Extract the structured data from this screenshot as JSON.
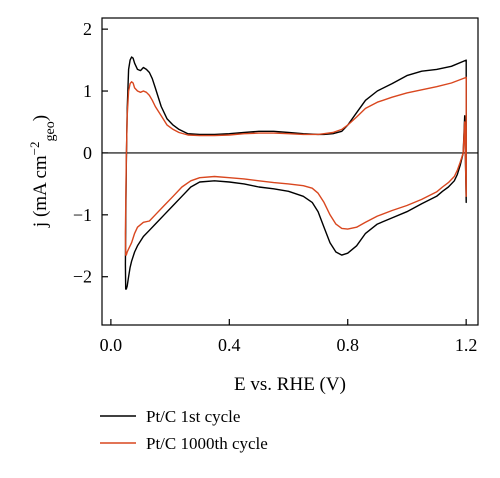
{
  "chart_data": {
    "type": "line",
    "xlabel": "E vs. RHE (V)",
    "ylabel": {
      "prefix": "j (mA cm",
      "sup": "−2",
      "sub": "geo",
      "suffix": ")"
    },
    "xlim": [
      -0.03,
      1.24
    ],
    "ylim": [
      -2.78,
      2.18
    ],
    "x_ticks": [
      0.0,
      0.4,
      0.8,
      1.2
    ],
    "x_tick_labels": [
      "0.0",
      "0.4",
      "0.8",
      "1.2"
    ],
    "y_ticks": [
      2,
      1,
      0,
      -1,
      -2
    ],
    "y_tick_labels": [
      "2",
      "1",
      "0",
      "−1",
      "−2"
    ],
    "zero_line": 0,
    "grid": false,
    "legend_position": "bottom-left, below plot",
    "series": [
      {
        "name": "Pt/C 1st cycle",
        "color": "#000000",
        "x": [
          0.05,
          0.052,
          0.055,
          0.06,
          0.065,
          0.07,
          0.075,
          0.08,
          0.09,
          0.1,
          0.11,
          0.12,
          0.13,
          0.14,
          0.15,
          0.17,
          0.19,
          0.21,
          0.23,
          0.26,
          0.3,
          0.35,
          0.4,
          0.45,
          0.5,
          0.55,
          0.6,
          0.65,
          0.7,
          0.72,
          0.75,
          0.78,
          0.8,
          0.83,
          0.86,
          0.9,
          0.95,
          1.0,
          1.05,
          1.1,
          1.15,
          1.2,
          1.2,
          1.195,
          1.19,
          1.18,
          1.17,
          1.16,
          1.14,
          1.12,
          1.1,
          1.05,
          1.0,
          0.95,
          0.9,
          0.86,
          0.83,
          0.8,
          0.78,
          0.76,
          0.74,
          0.72,
          0.7,
          0.68,
          0.65,
          0.6,
          0.55,
          0.5,
          0.45,
          0.4,
          0.35,
          0.3,
          0.27,
          0.24,
          0.21,
          0.18,
          0.15,
          0.13,
          0.11,
          0.09,
          0.08,
          0.07,
          0.065,
          0.06,
          0.055,
          0.052,
          0.05,
          0.049,
          0.05
        ],
        "y": [
          -1.2,
          -0.2,
          0.7,
          1.35,
          1.5,
          1.55,
          1.53,
          1.45,
          1.35,
          1.33,
          1.38,
          1.35,
          1.3,
          1.2,
          1.05,
          0.75,
          0.55,
          0.45,
          0.38,
          0.31,
          0.3,
          0.3,
          0.31,
          0.33,
          0.35,
          0.35,
          0.33,
          0.31,
          0.3,
          0.3,
          0.31,
          0.35,
          0.45,
          0.65,
          0.85,
          1.0,
          1.12,
          1.25,
          1.32,
          1.35,
          1.4,
          1.5,
          -0.8,
          0.6,
          0.0,
          -0.2,
          -0.35,
          -0.45,
          -0.55,
          -0.62,
          -0.7,
          -0.82,
          -0.95,
          -1.05,
          -1.15,
          -1.3,
          -1.5,
          -1.62,
          -1.65,
          -1.6,
          -1.45,
          -1.2,
          -0.95,
          -0.8,
          -0.7,
          -0.62,
          -0.58,
          -0.55,
          -0.5,
          -0.47,
          -0.45,
          -0.47,
          -0.55,
          -0.7,
          -0.85,
          -1.0,
          -1.15,
          -1.25,
          -1.35,
          -1.5,
          -1.6,
          -1.75,
          -1.85,
          -2.0,
          -2.15,
          -2.2,
          -2.2,
          -1.8,
          -1.2
        ]
      },
      {
        "name": "Pt/C 1000th cycle",
        "color": "#d9471f",
        "x": [
          0.05,
          0.052,
          0.055,
          0.06,
          0.065,
          0.07,
          0.075,
          0.08,
          0.09,
          0.1,
          0.11,
          0.12,
          0.13,
          0.14,
          0.15,
          0.17,
          0.19,
          0.21,
          0.23,
          0.26,
          0.3,
          0.35,
          0.4,
          0.45,
          0.5,
          0.55,
          0.6,
          0.65,
          0.7,
          0.72,
          0.75,
          0.78,
          0.8,
          0.83,
          0.86,
          0.9,
          0.95,
          1.0,
          1.05,
          1.1,
          1.15,
          1.2,
          1.2,
          1.195,
          1.19,
          1.18,
          1.17,
          1.16,
          1.14,
          1.12,
          1.1,
          1.05,
          1.0,
          0.95,
          0.9,
          0.86,
          0.83,
          0.8,
          0.78,
          0.76,
          0.74,
          0.72,
          0.7,
          0.68,
          0.65,
          0.6,
          0.55,
          0.5,
          0.45,
          0.4,
          0.35,
          0.3,
          0.27,
          0.24,
          0.21,
          0.18,
          0.15,
          0.13,
          0.11,
          0.09,
          0.08,
          0.07,
          0.065,
          0.06,
          0.055,
          0.052,
          0.05,
          0.049,
          0.05
        ],
        "y": [
          -0.9,
          -0.1,
          0.6,
          1.0,
          1.12,
          1.15,
          1.13,
          1.05,
          1.0,
          0.98,
          1.0,
          0.98,
          0.93,
          0.85,
          0.75,
          0.6,
          0.45,
          0.38,
          0.33,
          0.29,
          0.28,
          0.28,
          0.29,
          0.31,
          0.32,
          0.32,
          0.31,
          0.3,
          0.3,
          0.31,
          0.33,
          0.38,
          0.45,
          0.58,
          0.72,
          0.82,
          0.9,
          0.97,
          1.02,
          1.07,
          1.13,
          1.22,
          -0.7,
          0.5,
          0.0,
          -0.15,
          -0.28,
          -0.38,
          -0.48,
          -0.55,
          -0.63,
          -0.75,
          -0.85,
          -0.93,
          -1.02,
          -1.12,
          -1.2,
          -1.23,
          -1.22,
          -1.15,
          -1.0,
          -0.8,
          -0.65,
          -0.57,
          -0.53,
          -0.5,
          -0.48,
          -0.45,
          -0.42,
          -0.4,
          -0.38,
          -0.4,
          -0.45,
          -0.55,
          -0.7,
          -0.85,
          -1.0,
          -1.1,
          -1.12,
          -1.2,
          -1.3,
          -1.45,
          -1.5,
          -1.55,
          -1.6,
          -1.65,
          -1.65,
          -1.3,
          -0.9
        ]
      }
    ]
  }
}
